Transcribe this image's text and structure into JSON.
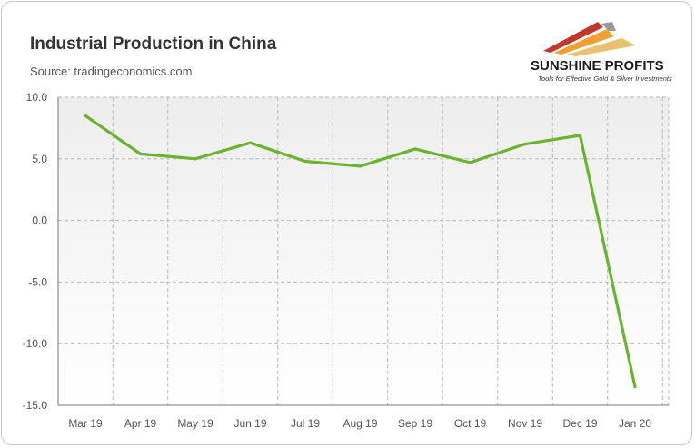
{
  "header": {
    "title": "Industrial Production in China",
    "source": "Source: tradingeconomics.com"
  },
  "brand": {
    "name": "SUNSHINE PROFITS",
    "tagline": "Tools for Effective Gold & Silver Investments",
    "colors": {
      "red": "#c0392b",
      "orange": "#f0a030",
      "gold": "#e8c070"
    }
  },
  "colors": {
    "line": "#6ab42d",
    "plot_bg": "#f2f2f2",
    "grid": "#b8b8b8",
    "axis": "#777777"
  },
  "chart_data": {
    "type": "line",
    "title": "Industrial Production in China",
    "subtitle": "Source: tradingeconomics.com",
    "xlabel": "",
    "ylabel": "",
    "categories": [
      "Mar 19",
      "Apr 19",
      "May 19",
      "Jun 19",
      "Jul 19",
      "Aug 19",
      "Sep 19",
      "Oct 19",
      "Nov 19",
      "Dec 19",
      "Jan 20"
    ],
    "series": [
      {
        "values": [
          8.5,
          5.4,
          5.0,
          6.3,
          4.8,
          4.4,
          5.8,
          4.7,
          6.2,
          6.9,
          -13.5
        ]
      }
    ],
    "ylim": [
      -15,
      10
    ],
    "yticks": [
      10,
      5,
      0,
      -5,
      -10,
      -15
    ],
    "ytick_labels": [
      "10.0",
      "5.0",
      "0.0",
      "-5.0",
      "-10.0",
      "-15.0"
    ],
    "grid": true,
    "legend": "none"
  }
}
